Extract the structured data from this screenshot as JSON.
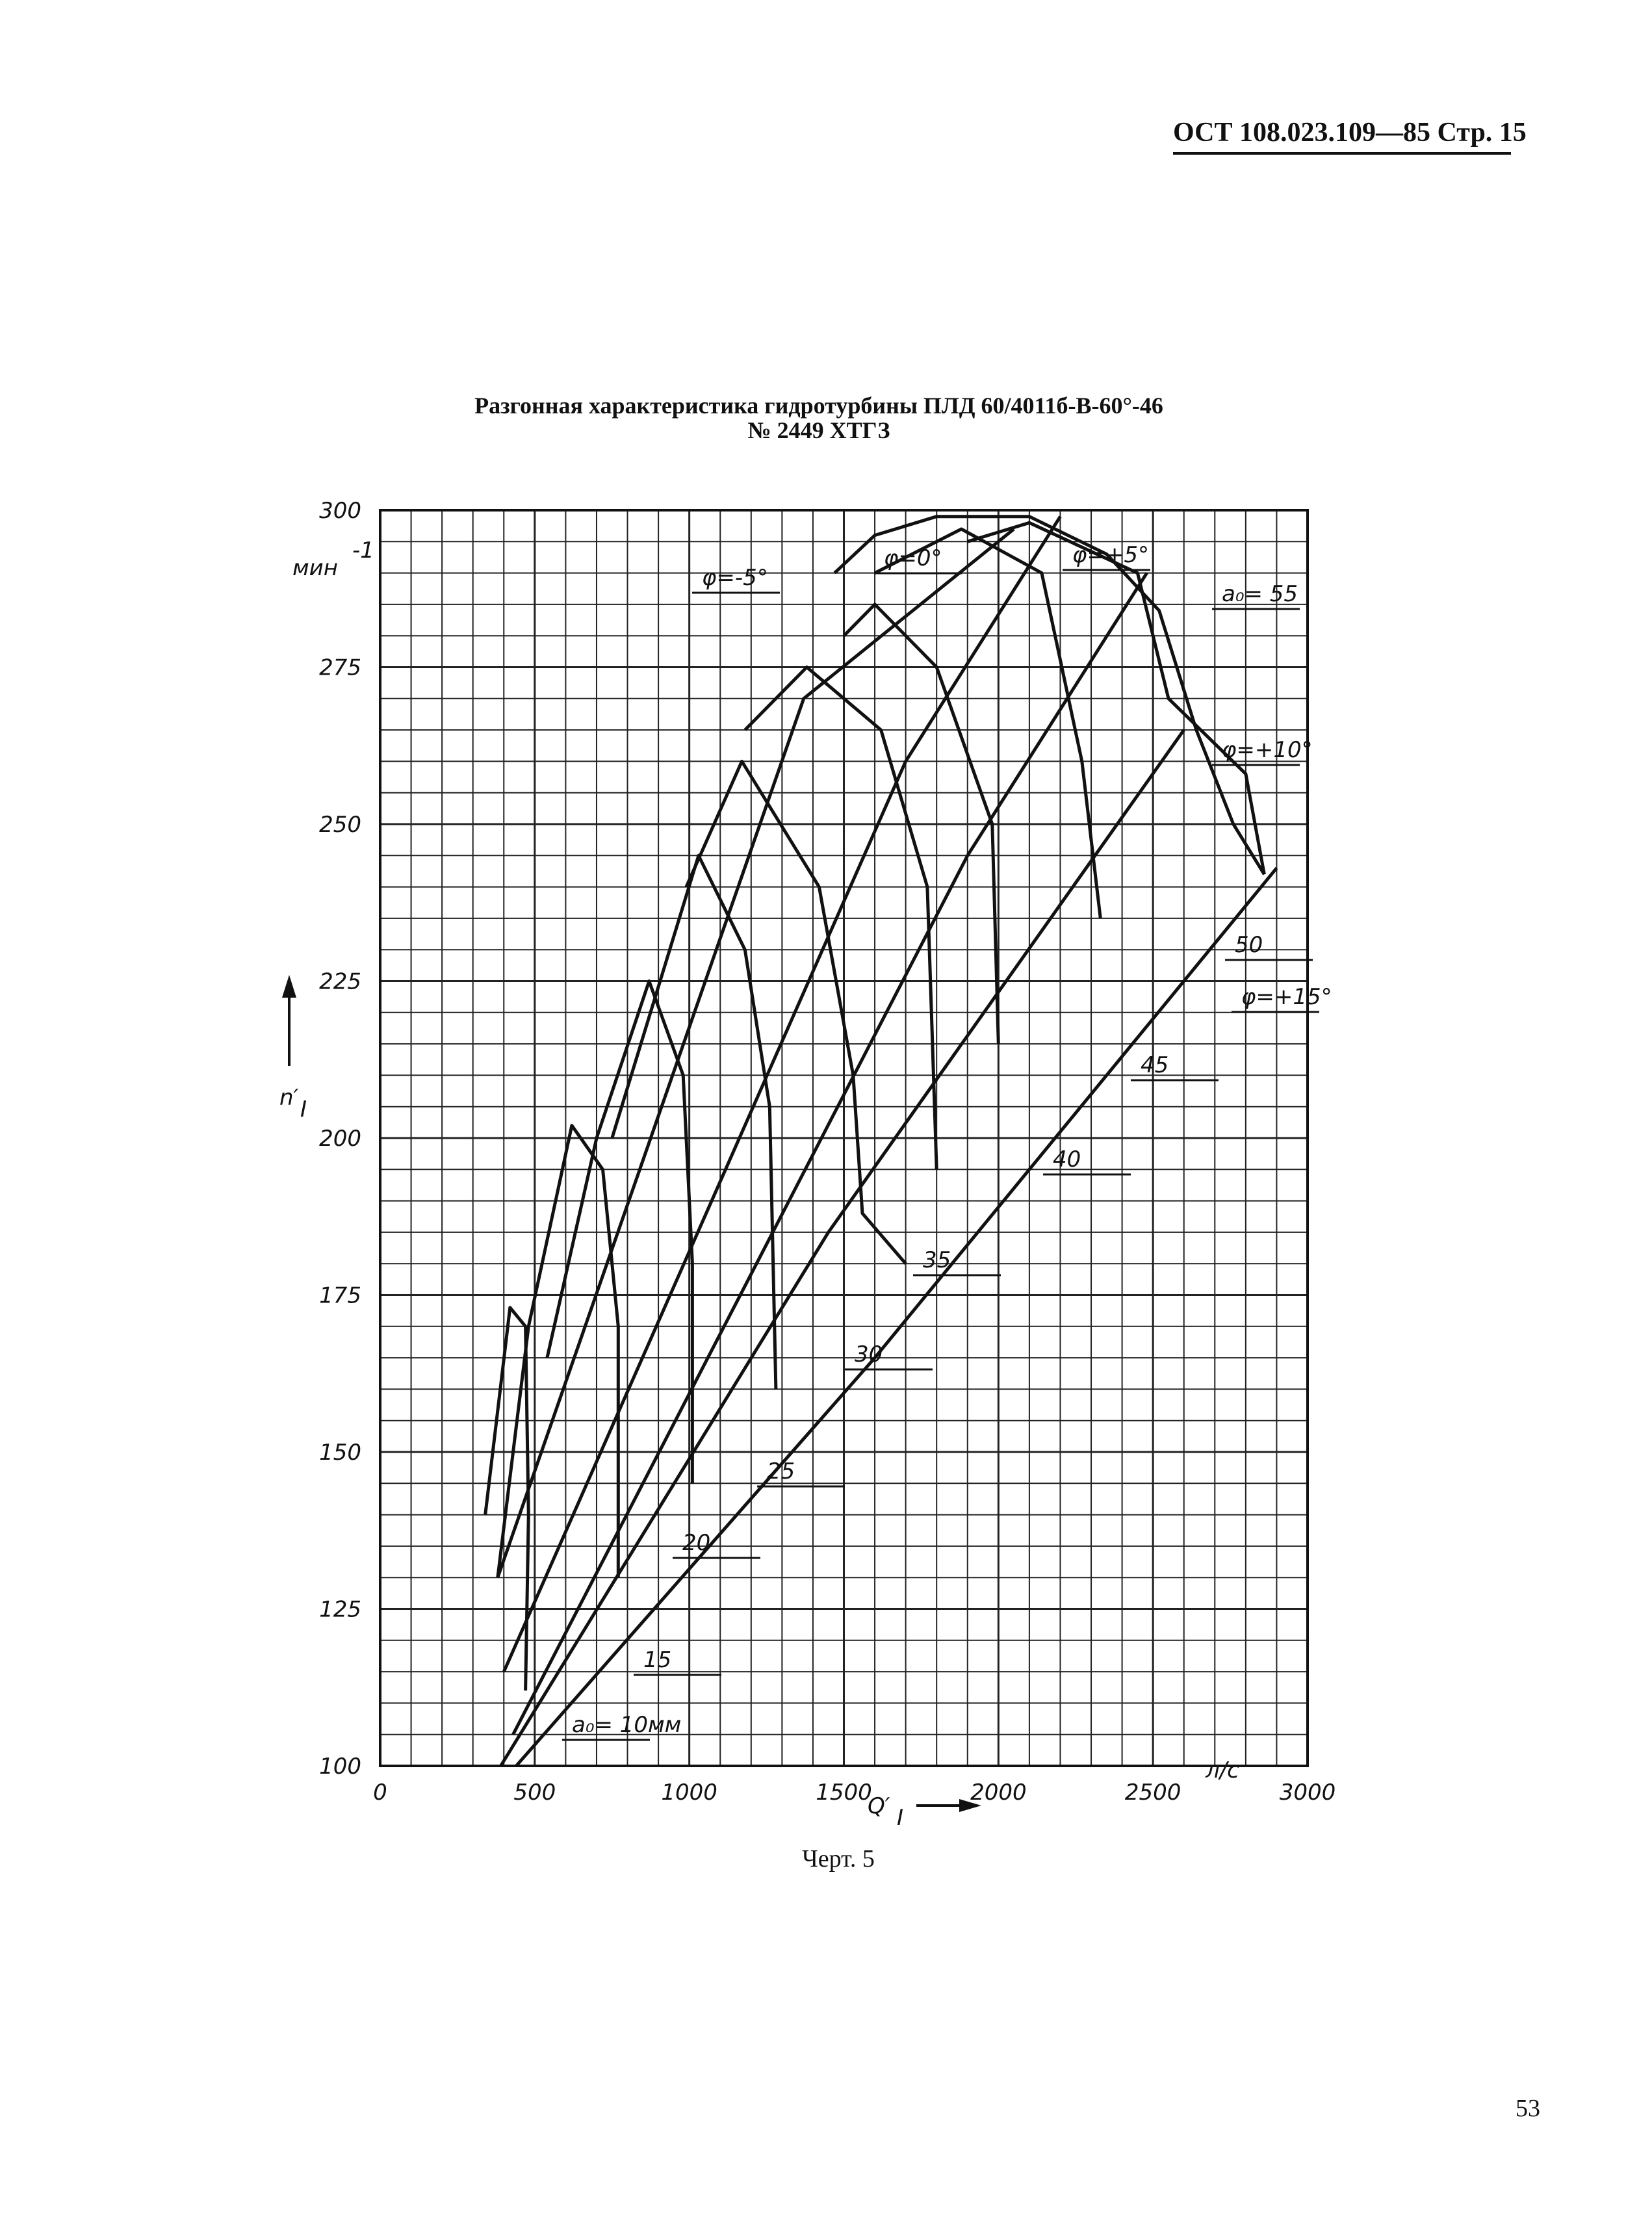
{
  "header": {
    "doc_ref": "ОСТ 108.023.109—85 Стр. 15"
  },
  "chart_title_line1": "Разгонная характеристика гидротурбины ПЛД 60/4011б-В-60°-46",
  "chart_title_line2": "№ 2449 ХТГЗ",
  "caption": "Черт. 5",
  "page_number": "53",
  "chart_data": {
    "type": "line",
    "title": "Разгонная характеристика гидротурбины ПЛД 60/4011б-В-60°-46 № 2449 ХТГЗ",
    "xlabel": "Q′I",
    "x_unit": "л/с",
    "ylabel": "n′I",
    "y_unit": "мин⁻¹",
    "xlim": [
      0,
      3000
    ],
    "ylim": [
      100,
      300
    ],
    "x_ticks": [
      "0",
      "500",
      "1000",
      "1500",
      "2000",
      "2500",
      "3000"
    ],
    "y_ticks": [
      "100",
      "125",
      "150",
      "175",
      "200",
      "225",
      "250",
      "275",
      "300"
    ],
    "grid": true,
    "phi_lines": [
      {
        "label": "φ=-5°",
        "points": [
          [
            380,
            130
          ],
          [
            1370,
            270
          ],
          [
            2050,
            297
          ]
        ]
      },
      {
        "label": "φ=0°",
        "points": [
          [
            400,
            115
          ],
          [
            1700,
            260
          ],
          [
            2200,
            299
          ]
        ]
      },
      {
        "label": "φ=+5°",
        "points": [
          [
            430,
            105
          ],
          [
            1900,
            245
          ],
          [
            2480,
            290
          ]
        ]
      },
      {
        "label": "φ=+10°",
        "points": [
          [
            390,
            100
          ],
          [
            1450,
            185
          ],
          [
            2600,
            265
          ]
        ]
      },
      {
        "label": "φ=+15°",
        "points": [
          [
            440,
            100
          ],
          [
            1600,
            165
          ],
          [
            2900,
            243
          ]
        ]
      }
    ],
    "ao_curves": [
      {
        "label": "a₀= 10мм",
        "points": [
          [
            340,
            140
          ],
          [
            420,
            173
          ],
          [
            470,
            170
          ],
          [
            480,
            140
          ],
          [
            470,
            112
          ]
        ]
      },
      {
        "label": "15",
        "points": [
          [
            380,
            130
          ],
          [
            480,
            170
          ],
          [
            620,
            202
          ],
          [
            720,
            195
          ],
          [
            770,
            170
          ],
          [
            770,
            130
          ]
        ]
      },
      {
        "label": "20",
        "points": [
          [
            540,
            165
          ],
          [
            700,
            200
          ],
          [
            870,
            225
          ],
          [
            980,
            210
          ],
          [
            1010,
            180
          ],
          [
            1010,
            145
          ]
        ]
      },
      {
        "label": "25",
        "points": [
          [
            750,
            200
          ],
          [
            1030,
            245
          ],
          [
            1180,
            230
          ],
          [
            1260,
            205
          ],
          [
            1280,
            160
          ]
        ]
      },
      {
        "label": "30",
        "points": [
          [
            990,
            240
          ],
          [
            1170,
            260
          ],
          [
            1420,
            240
          ],
          [
            1530,
            210
          ],
          [
            1560,
            188
          ],
          [
            1700,
            180
          ]
        ]
      },
      {
        "label": "35",
        "points": [
          [
            1180,
            265
          ],
          [
            1380,
            275
          ],
          [
            1620,
            265
          ],
          [
            1770,
            240
          ],
          [
            1800,
            195
          ]
        ]
      },
      {
        "label": "40",
        "points": [
          [
            1500,
            280
          ],
          [
            1600,
            285
          ],
          [
            1800,
            275
          ],
          [
            1980,
            250
          ],
          [
            2000,
            215
          ]
        ]
      },
      {
        "label": "45",
        "points": [
          [
            1600,
            290
          ],
          [
            1880,
            297
          ],
          [
            2140,
            290
          ],
          [
            2270,
            260
          ],
          [
            2330,
            235
          ]
        ]
      },
      {
        "label": "50",
        "points": [
          [
            1900,
            295
          ],
          [
            2100,
            298
          ],
          [
            2450,
            290
          ],
          [
            2550,
            270
          ],
          [
            2800,
            258
          ],
          [
            2860,
            242
          ]
        ]
      }
    ],
    "envelope": {
      "label": "a₀= 55",
      "points": [
        [
          1470,
          290
        ],
        [
          1600,
          296
        ],
        [
          1800,
          299
        ],
        [
          2100,
          299
        ],
        [
          2350,
          293
        ],
        [
          2520,
          284
        ],
        [
          2640,
          265
        ],
        [
          2760,
          250
        ],
        [
          2860,
          242
        ]
      ]
    },
    "curve_labels": [
      "φ=-5°",
      "φ=0°",
      "φ=+5°",
      "a₀= 55",
      "φ=+10°",
      "50",
      "φ=+15°",
      "45",
      "40",
      "35",
      "30",
      "25",
      "20",
      "15",
      "a₀= 10мм"
    ]
  }
}
